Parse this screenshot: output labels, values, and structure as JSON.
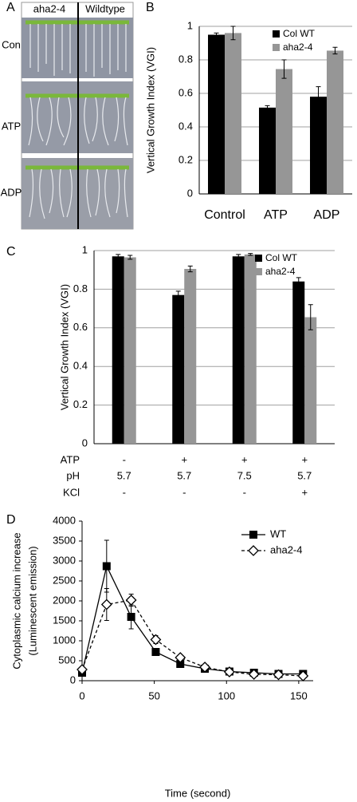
{
  "panel_a": {
    "label": "A",
    "columns": [
      "aha2-4",
      "Wildtype"
    ],
    "rows": [
      "Con",
      "ATP",
      "ADP"
    ]
  },
  "chart_data": [
    {
      "type": "bar",
      "panel_label": "B",
      "ylabel": "Vertical Growth Index (VGI)",
      "categories": [
        "Control",
        "ATP",
        "ADP"
      ],
      "series": [
        {
          "name": "Col WT",
          "color": "#000000",
          "values": [
            0.95,
            0.515,
            0.58
          ],
          "errors": [
            0.01,
            0.012,
            0.06
          ]
        },
        {
          "name": "aha2-4",
          "color": "#969696",
          "values": [
            0.96,
            0.745,
            0.855
          ],
          "errors": [
            0.04,
            0.055,
            0.02
          ]
        }
      ],
      "ylim": [
        0,
        1
      ],
      "yticks": [
        0,
        0.2,
        0.4,
        0.6,
        0.8,
        1
      ],
      "grid": true,
      "legend": "upper right"
    },
    {
      "type": "bar",
      "panel_label": "C",
      "ylabel": "Vertical Growth Index (VGI)",
      "treatments": [
        {
          "name": "ATP",
          "values": [
            "-",
            "+",
            "+",
            "+"
          ]
        },
        {
          "name": "pH",
          "values": [
            "5.7",
            "5.7",
            "7.5",
            "5.7"
          ]
        },
        {
          "name": "KCl",
          "values": [
            "-",
            "-",
            "-",
            "+"
          ]
        }
      ],
      "series": [
        {
          "name": "Col WT",
          "color": "#000000",
          "values": [
            0.97,
            0.77,
            0.97,
            0.84
          ],
          "errors": [
            0.01,
            0.02,
            0.01,
            0.02
          ]
        },
        {
          "name": "aha2-4",
          "color": "#969696",
          "values": [
            0.965,
            0.905,
            0.98,
            0.655
          ],
          "errors": [
            0.01,
            0.015,
            0.005,
            0.065
          ]
        }
      ],
      "ylim": [
        0,
        1
      ],
      "yticks": [
        0,
        0.2,
        0.4,
        0.6,
        0.8,
        1
      ],
      "grid": true,
      "legend": "upper right"
    },
    {
      "type": "line",
      "panel_label": "D",
      "xlabel": "Time (second)",
      "ylabel": [
        "Cytoplasmic calcium increase",
        "(Luminescent emission)"
      ],
      "x": [
        0,
        17,
        34,
        51,
        68,
        85,
        102,
        119,
        136,
        153
      ],
      "series": [
        {
          "name": "WT",
          "color": "#000000",
          "marker": "square",
          "linestyle": "solid",
          "values": [
            200,
            2870,
            1600,
            720,
            420,
            300,
            230,
            200,
            170,
            170
          ],
          "errors": [
            50,
            650,
            300,
            80,
            50,
            50,
            40,
            40,
            40,
            40
          ]
        },
        {
          "name": "aha2-4",
          "color": "#000000",
          "marker": "diamond",
          "linestyle": "dashed",
          "values": [
            280,
            1910,
            2020,
            1030,
            580,
            340,
            220,
            160,
            150,
            120
          ],
          "errors": [
            60,
            400,
            150,
            100,
            60,
            40,
            40,
            40,
            40,
            40
          ]
        }
      ],
      "xlim": [
        0,
        160
      ],
      "xticks": [
        0,
        50,
        100,
        150
      ],
      "ylim": [
        0,
        4000
      ],
      "yticks": [
        0,
        500,
        1000,
        1500,
        2000,
        2500,
        3000,
        3500,
        4000
      ],
      "legend": "upper right"
    }
  ]
}
